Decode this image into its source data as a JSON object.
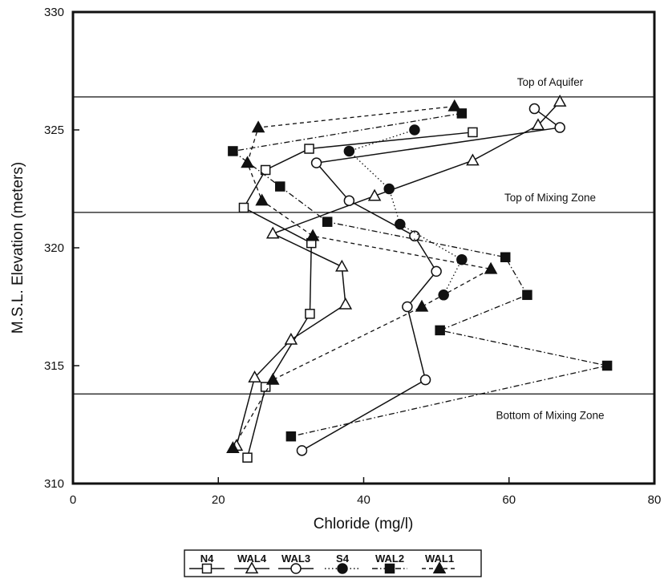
{
  "chart_data": {
    "type": "line",
    "xlabel": "Chloride (mg/l)",
    "ylabel": "M.S.L. Elevation (meters)",
    "xlim": [
      0,
      80
    ],
    "ylim": [
      310,
      330
    ],
    "xticks": [
      "0",
      "20",
      "40",
      "60",
      "80"
    ],
    "yticks": [
      "310",
      "315",
      "320",
      "325",
      "330"
    ],
    "grid": false,
    "legend_position": "bottom",
    "reference_lines": [
      {
        "label": "Top of Aquifer",
        "y": 326.4
      },
      {
        "label": "Top of Mixing Zone",
        "y": 321.5
      },
      {
        "label": "Bottom of Mixing Zone",
        "y": 313.8
      }
    ],
    "series": [
      {
        "name": "N4",
        "marker": "open-square",
        "line": "solid",
        "points": [
          [
            55,
            324.9
          ],
          [
            32.5,
            324.2
          ],
          [
            26.5,
            323.3
          ],
          [
            23.5,
            321.7
          ],
          [
            32.8,
            320.2
          ],
          [
            32.6,
            317.2
          ],
          [
            26.5,
            314.1
          ],
          [
            24,
            311.1
          ]
        ]
      },
      {
        "name": "WAL4",
        "marker": "open-triangle",
        "line": "solid",
        "points": [
          [
            67,
            326.2
          ],
          [
            64,
            325.2
          ],
          [
            55,
            323.7
          ],
          [
            41.5,
            322.2
          ],
          [
            27.5,
            320.6
          ],
          [
            37,
            319.2
          ],
          [
            37.5,
            317.6
          ],
          [
            30,
            316.1
          ],
          [
            25,
            314.5
          ],
          [
            22.5,
            311.6
          ]
        ]
      },
      {
        "name": "WAL3",
        "marker": "open-circle",
        "line": "solid",
        "points": [
          [
            63.5,
            325.9
          ],
          [
            67,
            325.1
          ],
          [
            33.5,
            323.6
          ],
          [
            38,
            322.0
          ],
          [
            47,
            320.5
          ],
          [
            50,
            319.0
          ],
          [
            46,
            317.5
          ],
          [
            48.5,
            314.4
          ],
          [
            31.5,
            311.4
          ]
        ]
      },
      {
        "name": "S4",
        "marker": "filled-circle",
        "line": "dotted",
        "points": [
          [
            47,
            325.0
          ],
          [
            38,
            324.1
          ],
          [
            43.5,
            322.5
          ],
          [
            45,
            321.0
          ],
          [
            53.5,
            319.5
          ],
          [
            51,
            318.0
          ]
        ]
      },
      {
        "name": "WAL2",
        "marker": "filled-square",
        "line": "dash-dot",
        "points": [
          [
            53.5,
            325.7
          ],
          [
            22,
            324.1
          ],
          [
            28.5,
            322.6
          ],
          [
            35,
            321.1
          ],
          [
            59.5,
            319.6
          ],
          [
            62.5,
            318.0
          ],
          [
            50.5,
            316.5
          ],
          [
            73.5,
            315.0
          ],
          [
            30,
            312.0
          ]
        ]
      },
      {
        "name": "WAL1",
        "marker": "filled-triangle",
        "line": "dashed",
        "points": [
          [
            52.5,
            326.0
          ],
          [
            25.5,
            325.1
          ],
          [
            24,
            323.6
          ],
          [
            26,
            322.0
          ],
          [
            33,
            320.5
          ],
          [
            57.5,
            319.1
          ],
          [
            48,
            317.5
          ],
          [
            27.5,
            314.4
          ],
          [
            22,
            311.5
          ]
        ]
      }
    ]
  }
}
